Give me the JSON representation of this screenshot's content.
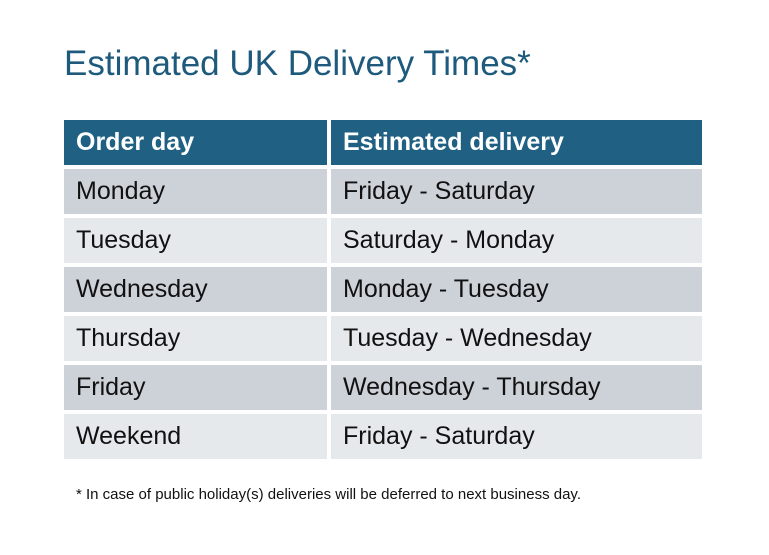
{
  "title": "Estimated UK Delivery Times*",
  "table": {
    "headers": [
      "Order day",
      "Estimated delivery"
    ],
    "rows": [
      [
        "Monday",
        "Friday - Saturday"
      ],
      [
        "Tuesday",
        "Saturday - Monday"
      ],
      [
        "Wednesday",
        "Monday - Tuesday"
      ],
      [
        "Thursday",
        "Tuesday - Wednesday"
      ],
      [
        "Friday",
        "Wednesday - Thursday"
      ],
      [
        "Weekend",
        "Friday - Saturday"
      ]
    ]
  },
  "footnote": "* In case of public holiday(s) deliveries will be deferred to next business day.",
  "colors": {
    "header": "#1f6083",
    "row_odd": "#cdd1d8",
    "row_even": "#e6e9ec",
    "title": "#1e5a7c"
  }
}
